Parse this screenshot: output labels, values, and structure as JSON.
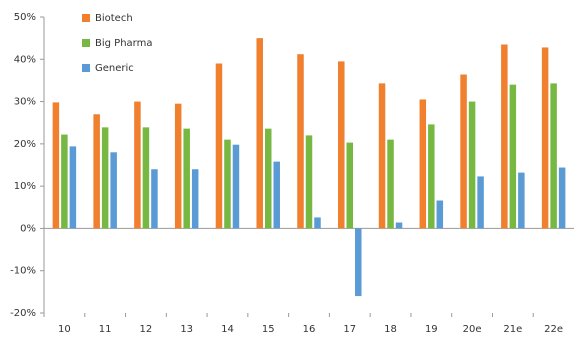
{
  "chart_data": {
    "type": "bar",
    "categories": [
      "10",
      "11",
      "12",
      "13",
      "14",
      "15",
      "16",
      "17",
      "18",
      "19",
      "20e",
      "21e",
      "22e"
    ],
    "series": [
      {
        "name": "Biotech",
        "color": "#f07f2e",
        "values": [
          29.8,
          27,
          30,
          29.5,
          39,
          45,
          41.2,
          39.5,
          34.3,
          30.5,
          36.4,
          43.5,
          42.8
        ]
      },
      {
        "name": "Big Pharma",
        "color": "#77b843",
        "values": [
          22.2,
          23.9,
          23.9,
          23.6,
          21,
          23.6,
          22,
          20.3,
          21,
          24.6,
          30,
          34,
          34.3
        ]
      },
      {
        "name": "Generic",
        "color": "#5b9bd5",
        "values": [
          19.4,
          18,
          14,
          14,
          19.8,
          15.8,
          2.6,
          -16,
          1.4,
          6.6,
          12.3,
          13.2,
          14.4
        ]
      }
    ],
    "ylim": [
      -20,
      50
    ],
    "yticks": [
      {
        "value": -20,
        "label": "-20%"
      },
      {
        "value": -10,
        "label": "-10%"
      },
      {
        "value": 0,
        "label": "0%"
      },
      {
        "value": 10,
        "label": "10%"
      },
      {
        "value": 20,
        "label": "20%"
      },
      {
        "value": 30,
        "label": "30%"
      },
      {
        "value": 40,
        "label": "40%"
      },
      {
        "value": 50,
        "label": "50%"
      }
    ],
    "grid": false,
    "legend": "top-left"
  }
}
